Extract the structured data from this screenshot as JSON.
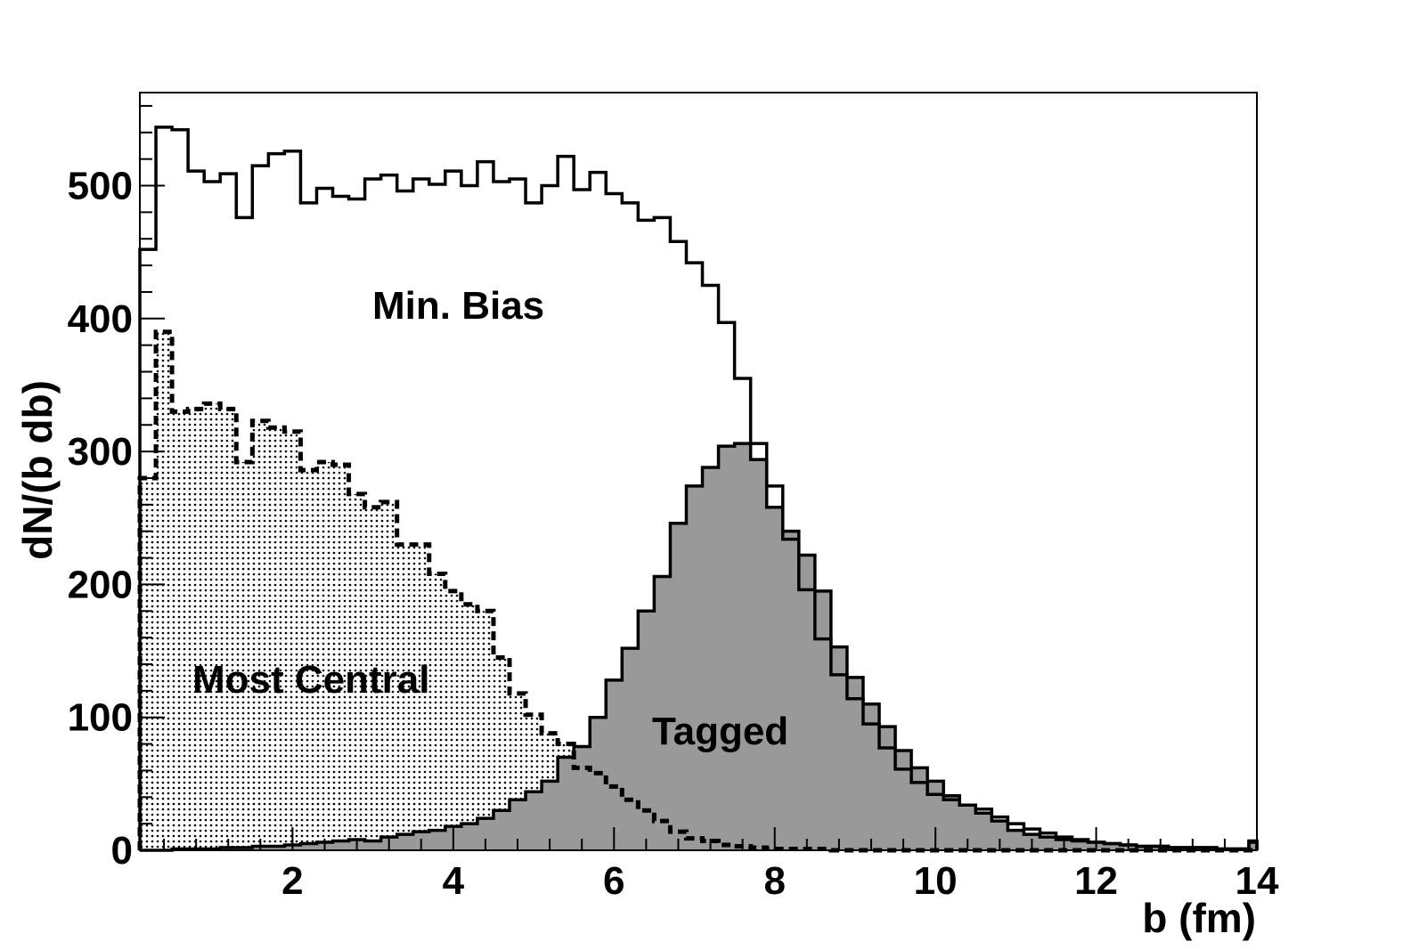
{
  "chart_data": {
    "type": "histogram",
    "xlabel": "b (fm)",
    "ylabel": "dN/(b db)",
    "xlim": [
      0.1,
      14
    ],
    "ylim": [
      0,
      570
    ],
    "x_ticks": [
      2,
      4,
      6,
      8,
      10,
      12,
      14
    ],
    "x_tick_labels": [
      "2",
      "4",
      "6",
      "8",
      "10",
      "12",
      "14"
    ],
    "y_ticks": [
      0,
      100,
      200,
      300,
      400,
      500
    ],
    "y_tick_labels": [
      "0",
      "100",
      "200",
      "300",
      "400",
      "500"
    ],
    "bin_width": 0.2,
    "bin_start": 0.1,
    "grid": false,
    "annotations": {
      "min_bias": "Min. Bias",
      "most_central": "Most Central",
      "tagged": "Tagged"
    },
    "series": [
      {
        "key": "min_bias",
        "style": "solid outline, no fill",
        "color": "#000000",
        "values": [
          452,
          544,
          542,
          511,
          503,
          509,
          476,
          515,
          524,
          526,
          487,
          498,
          492,
          490,
          505,
          508,
          496,
          505,
          501,
          511,
          500,
          518,
          503,
          505,
          487,
          500,
          522,
          497,
          510,
          494,
          487,
          474,
          476,
          458,
          442,
          425,
          397,
          355,
          306,
          274,
          234,
          196,
          159,
          132,
          114,
          95,
          77,
          61,
          51,
          42,
          38,
          34,
          31,
          25,
          20,
          16,
          13,
          10,
          8,
          6,
          5,
          4,
          3,
          3,
          2,
          2,
          2,
          1,
          1,
          6
        ]
      },
      {
        "key": "most_central",
        "style": "dashed outline, dotted fill",
        "color": "#000000",
        "values": [
          280,
          390,
          330,
          332,
          336,
          332,
          292,
          323,
          318,
          315,
          286,
          292,
          290,
          268,
          258,
          262,
          230,
          230,
          208,
          195,
          185,
          180,
          145,
          118,
          102,
          88,
          80,
          62,
          58,
          48,
          38,
          30,
          22,
          14,
          9,
          7,
          4,
          3,
          2,
          1,
          1,
          1,
          1,
          0,
          0,
          0,
          0,
          0,
          0,
          0,
          0,
          0,
          0,
          0,
          0,
          0,
          0,
          0,
          0,
          0,
          0,
          0,
          0,
          0,
          0,
          0,
          0,
          0,
          0,
          0
        ]
      },
      {
        "key": "tagged",
        "style": "solid outline, gray fill",
        "color": "#999999",
        "values": [
          0,
          0,
          1,
          1,
          1,
          2,
          2,
          3,
          3,
          4,
          5,
          6,
          7,
          8,
          7,
          10,
          12,
          14,
          15,
          18,
          20,
          24,
          30,
          38,
          44,
          52,
          70,
          78,
          100,
          128,
          152,
          180,
          206,
          246,
          274,
          288,
          304,
          306,
          294,
          258,
          240,
          222,
          195,
          153,
          130,
          110,
          93,
          75,
          62,
          52,
          41,
          34,
          28,
          22,
          15,
          12,
          10,
          8,
          7,
          6,
          5,
          4,
          3,
          3,
          2,
          2,
          2,
          1,
          1,
          7
        ]
      }
    ]
  }
}
